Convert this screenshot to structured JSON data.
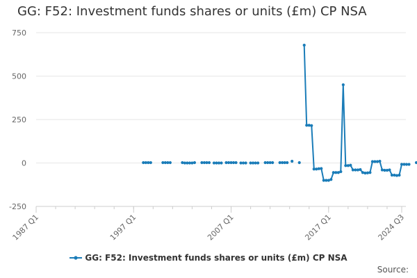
{
  "chart_data": {
    "type": "line",
    "title": "GG: F52: Investment funds shares or units (£m) CP NSA",
    "x_tick_labels": [
      "1987 Q1",
      "1997 Q1",
      "2007 Q1",
      "2017 Q1",
      "2024 Q3"
    ],
    "x_range": [
      "1987 Q1",
      "2024 Q3"
    ],
    "y_ticks": [
      -250,
      0,
      250,
      500,
      750
    ],
    "ylim": [
      -250,
      750
    ],
    "grid": "horizontal",
    "legend_position": "bottom",
    "series": [
      {
        "name": "GG: F52: Investment funds shares or units (£m) CP NSA",
        "color": "#1a7cb8",
        "points": [
          [
            "1998 Q1",
            2
          ],
          [
            "1998 Q2",
            2
          ],
          [
            "1998 Q3",
            2
          ],
          [
            "1998 Q4",
            2
          ],
          [
            "2000 Q1",
            2
          ],
          [
            "2000 Q2",
            2
          ],
          [
            "2000 Q3",
            2
          ],
          [
            "2000 Q4",
            2
          ],
          [
            "2002 Q1",
            2
          ],
          [
            "2002 Q2",
            0
          ],
          [
            "2002 Q3",
            0
          ],
          [
            "2002 Q4",
            0
          ],
          [
            "2003 Q1",
            0
          ],
          [
            "2003 Q2",
            2
          ],
          [
            "2004 Q1",
            2
          ],
          [
            "2004 Q2",
            2
          ],
          [
            "2004 Q3",
            2
          ],
          [
            "2004 Q4",
            2
          ],
          [
            "2005 Q2",
            0
          ],
          [
            "2005 Q3",
            0
          ],
          [
            "2005 Q4",
            0
          ],
          [
            "2006 Q1",
            0
          ],
          [
            "2006 Q3",
            2
          ],
          [
            "2006 Q4",
            2
          ],
          [
            "2007 Q1",
            2
          ],
          [
            "2007 Q2",
            2
          ],
          [
            "2007 Q3",
            2
          ],
          [
            "2008 Q1",
            0
          ],
          [
            "2008 Q2",
            0
          ],
          [
            "2008 Q3",
            0
          ],
          [
            "2009 Q1",
            0
          ],
          [
            "2009 Q2",
            0
          ],
          [
            "2009 Q3",
            0
          ],
          [
            "2009 Q4",
            0
          ],
          [
            "2010 Q3",
            2
          ],
          [
            "2010 Q4",
            2
          ],
          [
            "2011 Q1",
            2
          ],
          [
            "2011 Q2",
            2
          ],
          [
            "2012 Q1",
            2
          ],
          [
            "2012 Q2",
            2
          ],
          [
            "2012 Q3",
            2
          ],
          [
            "2012 Q4",
            2
          ],
          [
            "2013 Q2",
            10
          ],
          [
            "2014 Q1",
            2
          ],
          [
            "2014 Q3",
            678
          ],
          [
            "2014 Q4",
            217
          ],
          [
            "2015 Q1",
            217
          ],
          [
            "2015 Q2",
            215
          ],
          [
            "2015 Q3",
            -35
          ],
          [
            "2015 Q4",
            -35
          ],
          [
            "2016 Q1",
            -33
          ],
          [
            "2016 Q2",
            -32
          ],
          [
            "2016 Q3",
            -100
          ],
          [
            "2016 Q4",
            -100
          ],
          [
            "2017 Q1",
            -100
          ],
          [
            "2017 Q2",
            -95
          ],
          [
            "2017 Q3",
            -55
          ],
          [
            "2017 Q4",
            -55
          ],
          [
            "2018 Q1",
            -55
          ],
          [
            "2018 Q2",
            -50
          ],
          [
            "2018 Q3",
            450
          ],
          [
            "2018 Q4",
            -15
          ],
          [
            "2019 Q1",
            -15
          ],
          [
            "2019 Q2",
            -13
          ],
          [
            "2019 Q3",
            -40
          ],
          [
            "2019 Q4",
            -40
          ],
          [
            "2020 Q1",
            -40
          ],
          [
            "2020 Q2",
            -38
          ],
          [
            "2020 Q3",
            -55
          ],
          [
            "2020 Q4",
            -58
          ],
          [
            "2021 Q1",
            -57
          ],
          [
            "2021 Q2",
            -55
          ],
          [
            "2021 Q3",
            8
          ],
          [
            "2021 Q4",
            8
          ],
          [
            "2022 Q1",
            8
          ],
          [
            "2022 Q2",
            10
          ],
          [
            "2022 Q3",
            -40
          ],
          [
            "2022 Q4",
            -42
          ],
          [
            "2023 Q1",
            -42
          ],
          [
            "2023 Q2",
            -40
          ],
          [
            "2023 Q3",
            -70
          ],
          [
            "2023 Q4",
            -70
          ],
          [
            "2024 Q1",
            -72
          ],
          [
            "2024 Q2",
            -70
          ],
          [
            "2024 Q3",
            -8
          ],
          [
            "2024 Q4",
            -8
          ],
          [
            "2025 Q1",
            -8
          ],
          [
            "2025 Q2",
            -8
          ],
          [
            "2026 Q1",
            2
          ]
        ]
      }
    ]
  },
  "legend": {
    "label": "GG: F52: Investment funds shares or units (£m) CP NSA"
  },
  "source": {
    "label": "Source:"
  }
}
